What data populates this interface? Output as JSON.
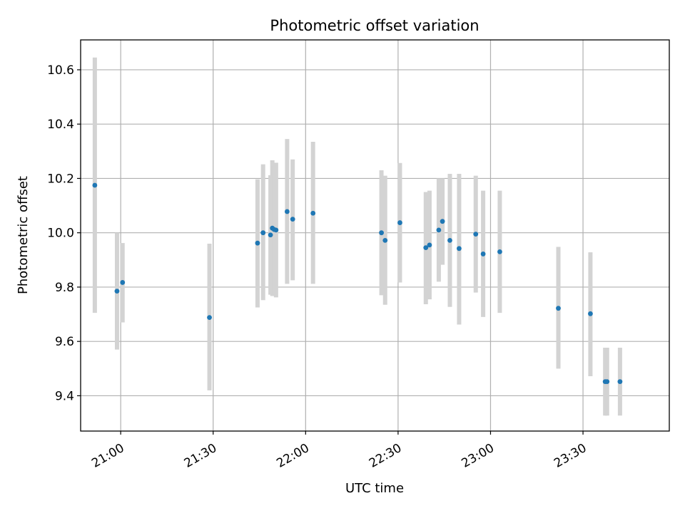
{
  "chart_data": {
    "type": "scatter",
    "title": "Photometric offset variation",
    "xlabel": "UTC time",
    "ylabel": "Photometric offset",
    "x_axis": {
      "kind": "time",
      "ticks": [
        "21:00",
        "21:30",
        "22:00",
        "22:30",
        "23:00",
        "23:30"
      ],
      "range": [
        "20:47",
        "23:58"
      ]
    },
    "y_axis": {
      "ticks": [
        "9.4",
        "9.6",
        "9.8",
        "10.0",
        "10.2",
        "10.4",
        "10.6"
      ],
      "range": [
        9.27,
        10.71
      ]
    },
    "grid": true,
    "colors": {
      "point": "#1f77b4",
      "errorbar": "#d3d3d3"
    },
    "points": [
      {
        "x": "20:51:36",
        "y": 10.175,
        "ylow": 9.705,
        "yhigh": 10.645
      },
      {
        "x": "20:58:48",
        "y": 9.785,
        "ylow": 9.57,
        "yhigh": 10.0
      },
      {
        "x": "21:00:36",
        "y": 9.817,
        "ylow": 9.67,
        "yhigh": 9.962
      },
      {
        "x": "21:28:48",
        "y": 9.688,
        "ylow": 9.42,
        "yhigh": 9.96
      },
      {
        "x": "21:44:24",
        "y": 9.962,
        "ylow": 9.725,
        "yhigh": 10.197
      },
      {
        "x": "21:46:12",
        "y": 10.0,
        "ylow": 9.752,
        "yhigh": 10.252
      },
      {
        "x": "21:48:36",
        "y": 9.992,
        "ylow": 9.772,
        "yhigh": 10.212
      },
      {
        "x": "21:49:12",
        "y": 10.017,
        "ylow": 9.767,
        "yhigh": 10.267
      },
      {
        "x": "21:49:48",
        "y": 10.012,
        "ylow": 9.777,
        "yhigh": 10.247
      },
      {
        "x": "21:50:24",
        "y": 10.01,
        "ylow": 9.762,
        "yhigh": 10.258
      },
      {
        "x": "21:54:00",
        "y": 10.078,
        "ylow": 9.812,
        "yhigh": 10.345
      },
      {
        "x": "21:55:48",
        "y": 10.05,
        "ylow": 9.825,
        "yhigh": 10.27
      },
      {
        "x": "22:02:24",
        "y": 10.072,
        "ylow": 9.812,
        "yhigh": 10.335
      },
      {
        "x": "22:24:36",
        "y": 10.0,
        "ylow": 9.77,
        "yhigh": 10.23
      },
      {
        "x": "22:25:48",
        "y": 9.972,
        "ylow": 9.735,
        "yhigh": 10.21
      },
      {
        "x": "22:30:36",
        "y": 10.037,
        "ylow": 9.817,
        "yhigh": 10.257
      },
      {
        "x": "22:39:00",
        "y": 9.945,
        "ylow": 9.737,
        "yhigh": 10.15
      },
      {
        "x": "22:40:12",
        "y": 9.955,
        "ylow": 9.755,
        "yhigh": 10.155
      },
      {
        "x": "22:43:12",
        "y": 10.01,
        "ylow": 9.82,
        "yhigh": 10.2
      },
      {
        "x": "22:44:24",
        "y": 10.042,
        "ylow": 9.882,
        "yhigh": 10.2
      },
      {
        "x": "22:46:48",
        "y": 9.972,
        "ylow": 9.727,
        "yhigh": 10.217
      },
      {
        "x": "22:49:48",
        "y": 9.942,
        "ylow": 9.662,
        "yhigh": 10.217
      },
      {
        "x": "22:55:12",
        "y": 9.995,
        "ylow": 9.78,
        "yhigh": 10.21
      },
      {
        "x": "22:57:36",
        "y": 9.922,
        "ylow": 9.69,
        "yhigh": 10.155
      },
      {
        "x": "23:03:00",
        "y": 9.93,
        "ylow": 9.705,
        "yhigh": 10.155
      },
      {
        "x": "23:22:00",
        "y": 9.722,
        "ylow": 9.5,
        "yhigh": 9.948
      },
      {
        "x": "23:32:24",
        "y": 9.702,
        "ylow": 9.472,
        "yhigh": 9.928
      },
      {
        "x": "23:37:12",
        "y": 9.452,
        "ylow": 9.327,
        "yhigh": 9.577
      },
      {
        "x": "23:37:48",
        "y": 9.452,
        "ylow": 9.327,
        "yhigh": 9.577
      },
      {
        "x": "23:42:00",
        "y": 9.452,
        "ylow": 9.327,
        "yhigh": 9.577
      }
    ]
  }
}
